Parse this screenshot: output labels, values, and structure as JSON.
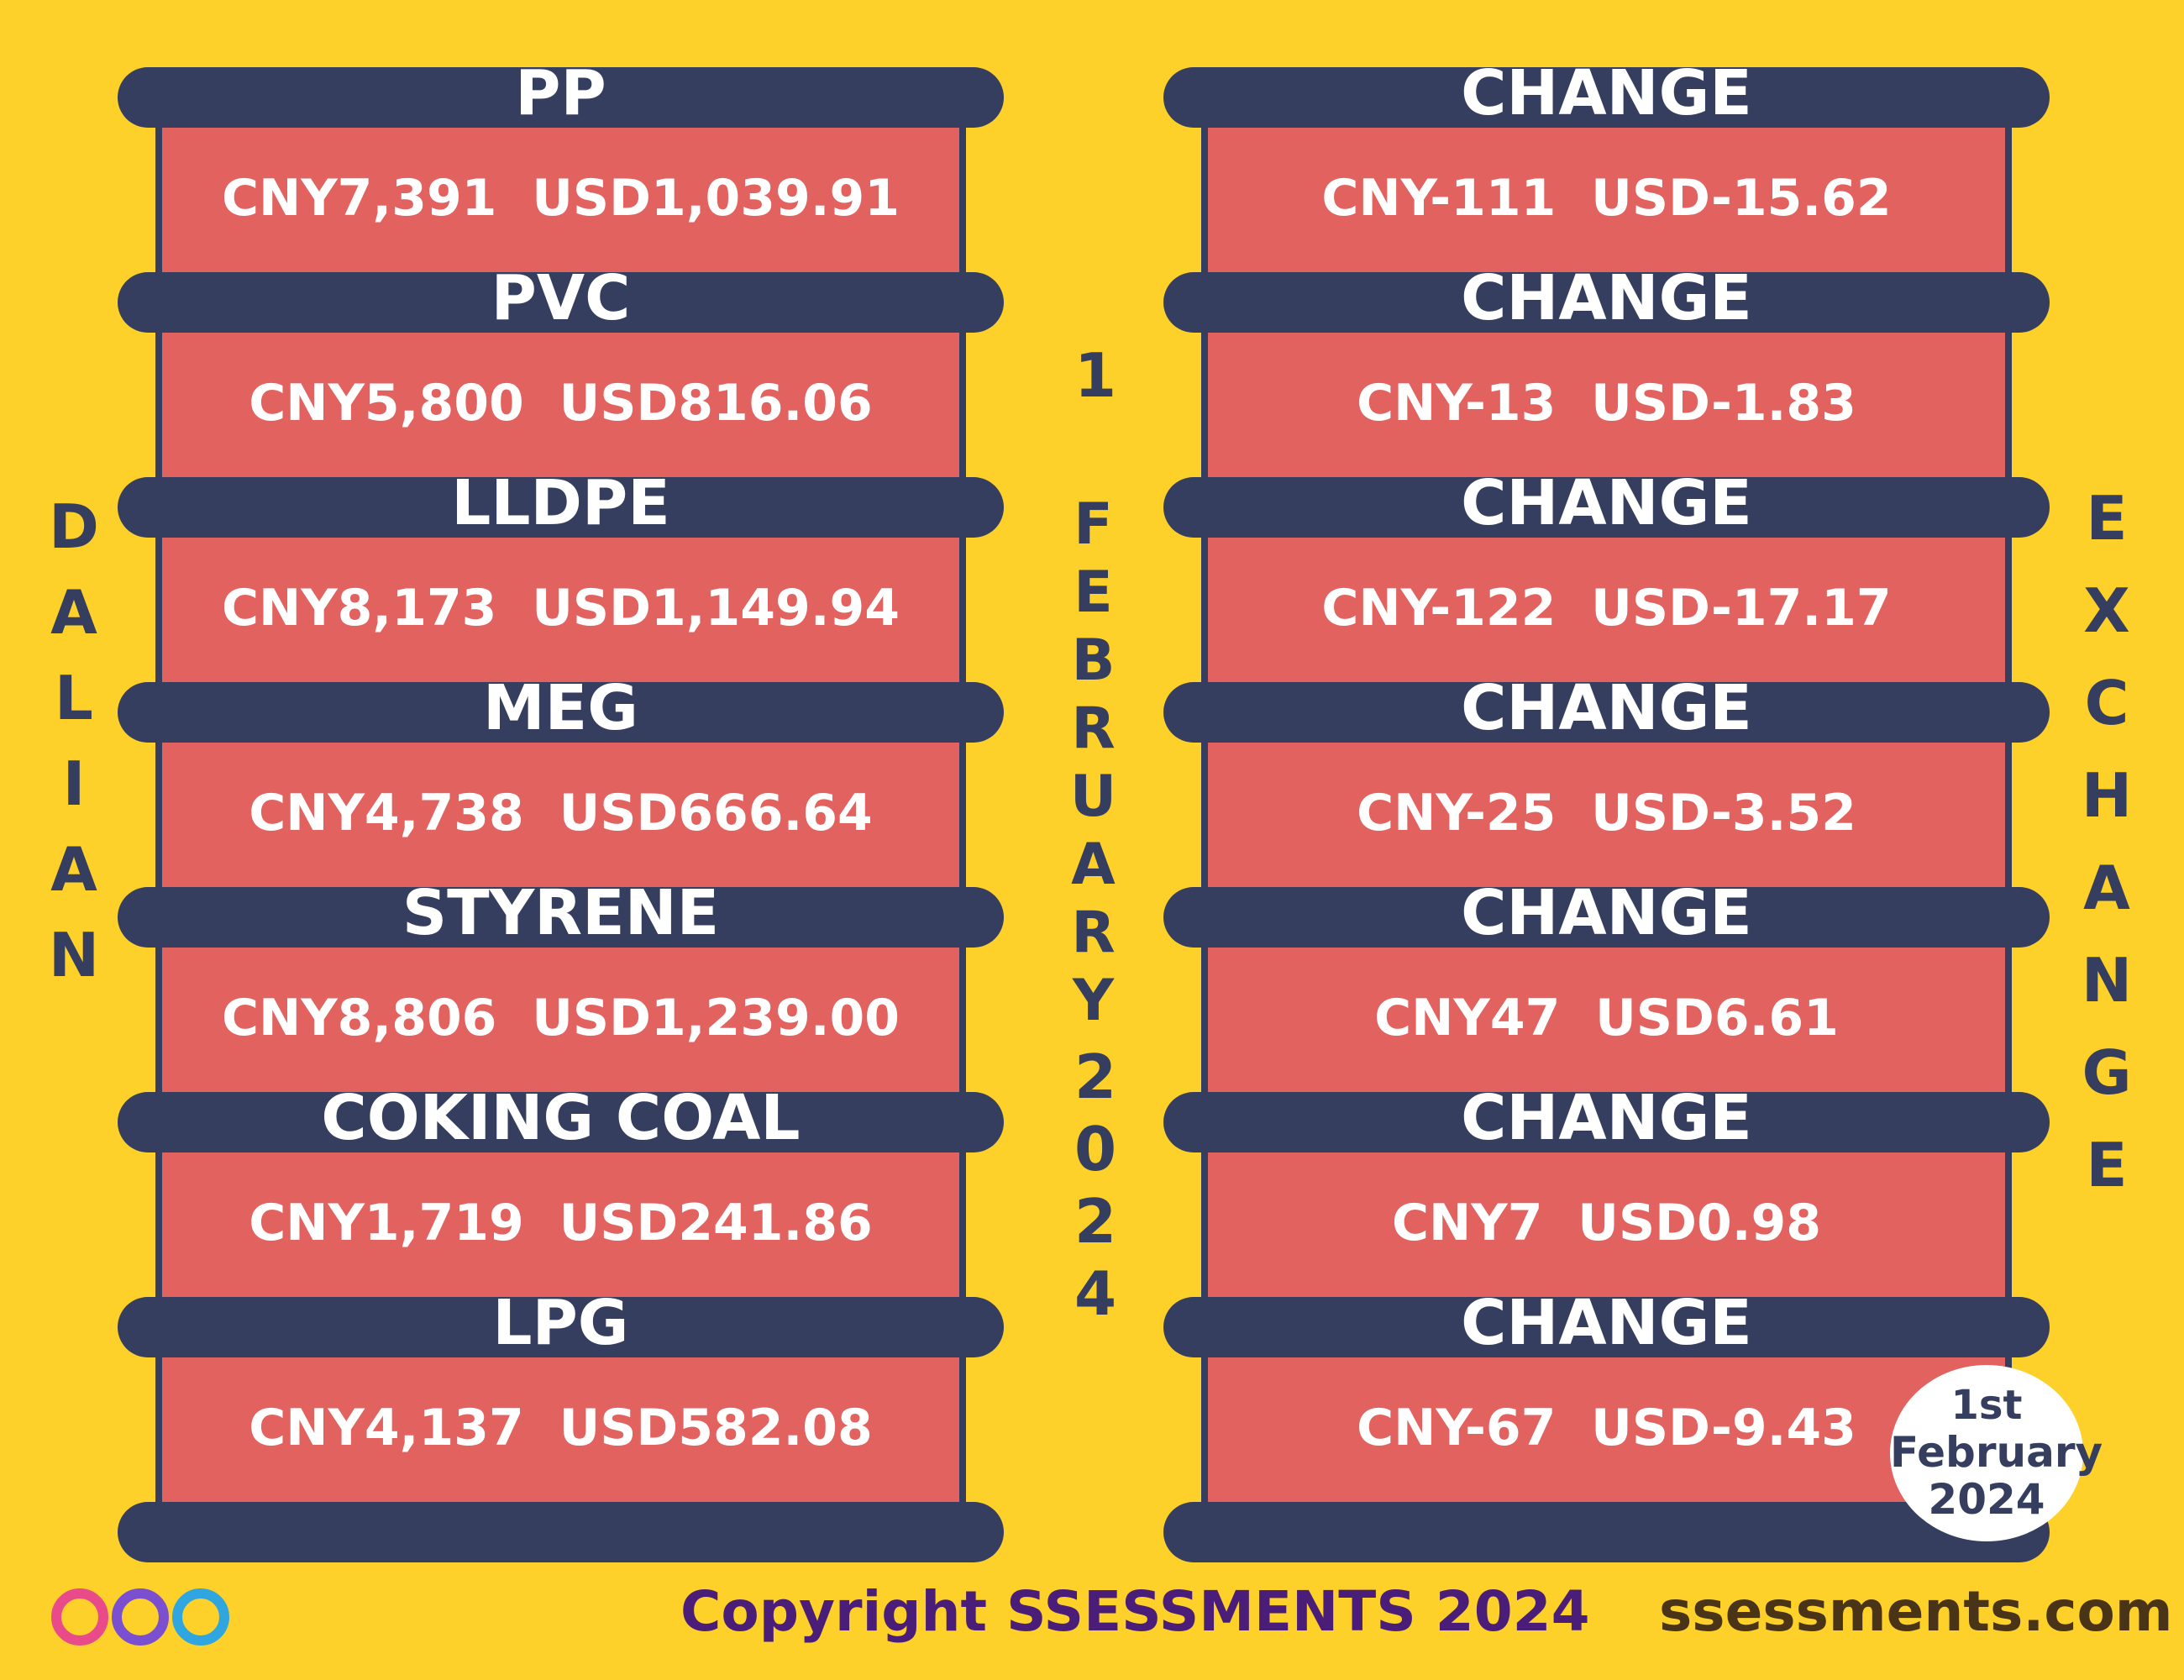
{
  "side_left": "DALIAN",
  "center_date": {
    "day": "1",
    "month": "FEBRUARY",
    "year": "2024"
  },
  "side_right": "EXCHANGE",
  "products": [
    {
      "name": "PP",
      "price": "CNY7,391  USD1,039.91",
      "change_label": "CHANGE",
      "change": "CNY-111  USD-15.62"
    },
    {
      "name": "PVC",
      "price": "CNY5,800  USD816.06",
      "change_label": "CHANGE",
      "change": "CNY-13  USD-1.83"
    },
    {
      "name": "LLDPE",
      "price": "CNY8,173  USD1,149.94",
      "change_label": "CHANGE",
      "change": "CNY-122  USD-17.17"
    },
    {
      "name": "MEG",
      "price": "CNY4,738  USD666.64",
      "change_label": "CHANGE",
      "change": "CNY-25  USD-3.52"
    },
    {
      "name": "STYRENE",
      "price": "CNY8,806  USD1,239.00",
      "change_label": "CHANGE",
      "change": "CNY47  USD6.61"
    },
    {
      "name": "COKING COAL",
      "price": "CNY1,719  USD241.86",
      "change_label": "CHANGE",
      "change": "CNY7  USD0.98"
    },
    {
      "name": "LPG",
      "price": "CNY4,137  USD582.08",
      "change_label": "CHANGE",
      "change": "CNY-67  USD-9.43"
    }
  ],
  "badge": {
    "line1": "1st",
    "line2": "February",
    "line3": "2024"
  },
  "footer": {
    "copyright": "Copyright SSESSMENTS 2024",
    "website": "ssessments.com"
  }
}
